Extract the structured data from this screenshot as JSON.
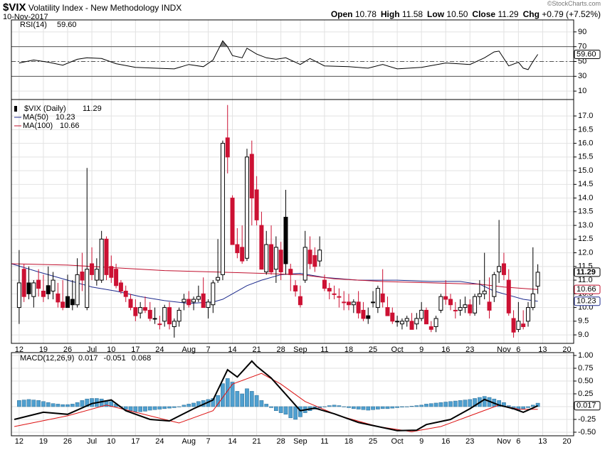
{
  "header": {
    "symbol": "$VIX",
    "name": "Volatility Index - New Methodology INDX",
    "date": "10-Nov-2017",
    "credit": "©StockCharts.com",
    "quote": [
      {
        "label": "Open",
        "value": "10.78"
      },
      {
        "label": "High",
        "value": "11.58"
      },
      {
        "label": "Low",
        "value": "10.50"
      },
      {
        "label": "Close",
        "value": "11.29"
      },
      {
        "label": "Chg",
        "value": "+0.79 (+7.52%)"
      }
    ]
  },
  "chart_data": [
    {
      "type": "rsi",
      "title": "RSI(14)",
      "value_label": "59.60",
      "color": "#000000",
      "shade_color": "#777777",
      "x": [
        0,
        3,
        6,
        9,
        12,
        14,
        17,
        20,
        24,
        28,
        32,
        35,
        38,
        40,
        42,
        43,
        44,
        46,
        47,
        49,
        51,
        53,
        55,
        58,
        60,
        63,
        68,
        72,
        75,
        78,
        83,
        88,
        93,
        96,
        98,
        99,
        101,
        103,
        104,
        105,
        106,
        107
      ],
      "values": [
        48,
        52,
        49,
        45,
        53,
        55,
        54,
        47,
        42,
        41,
        40,
        46,
        43,
        52,
        78,
        70,
        58,
        55,
        68,
        60,
        55,
        53,
        55,
        46,
        54,
        44,
        43,
        41,
        46,
        40,
        42,
        48,
        46,
        55,
        63,
        64,
        44,
        49,
        41,
        39,
        50,
        59.6
      ],
      "ylim": [
        -1.4,
        106.2
      ],
      "yticks": [
        90,
        70,
        50,
        30,
        10
      ],
      "bands": [
        30,
        70
      ],
      "midline": 50
    },
    {
      "type": "candlestick",
      "title": "$VIX (Daily)",
      "value_label": "11.29",
      "up_color": "#000000",
      "down_color": "#cc1133",
      "open": [
        10.0,
        11.4,
        10.9,
        10.4,
        11.0,
        10.6,
        10.8,
        10.6,
        10.5,
        10.2,
        10.4,
        10.3,
        10.1,
        11.3,
        10.0,
        11.6,
        11.0,
        11.0,
        12.5,
        11.5,
        11.4,
        10.9,
        10.6,
        10.3,
        10.0,
        9.8,
        10.0,
        9.9,
        9.6,
        9.4,
        9.5,
        10.0,
        9.3,
        9.5,
        10.2,
        10.3,
        10.2,
        10.3,
        10.5,
        10.0,
        10.1,
        11.0,
        11.2,
        16.2,
        14.0,
        12.3,
        12.2,
        11.8,
        15.6,
        14.3,
        13.0,
        11.3,
        12.3,
        11.4,
        12.1,
        13.3,
        11.4,
        10.8,
        10.4,
        11.0,
        12.1,
        11.9,
        11.7,
        11.0,
        10.7,
        10.5,
        10.4,
        10.2,
        10.2,
        10.1,
        10.2,
        9.9,
        9.7,
        10.2,
        10.0,
        10.5,
        10.0,
        9.8,
        9.5,
        9.4,
        9.5,
        9.5,
        9.4,
        9.6,
        9.9,
        9.3,
        9.3,
        9.9,
        10.4,
        10.3,
        9.9,
        9.9,
        10.0,
        10.1,
        9.8,
        10.4,
        10.5,
        10.2,
        10.4,
        11.3,
        11.6,
        11.0,
        9.6,
        9.2,
        9.4,
        9.5,
        10.0,
        10.78
      ],
      "high": [
        12.1,
        11.6,
        11.5,
        11.0,
        11.4,
        11.2,
        11.5,
        11.3,
        10.9,
        11.0,
        11.2,
        11.0,
        11.8,
        12.0,
        15.1,
        12.2,
        11.8,
        12.8,
        12.6,
        11.9,
        11.6,
        11.0,
        10.8,
        10.5,
        10.3,
        10.2,
        10.4,
        10.2,
        10.0,
        9.7,
        10.1,
        10.2,
        9.6,
        10.0,
        10.5,
        10.6,
        10.4,
        10.8,
        11.1,
        10.3,
        11.0,
        12.5,
        16.1,
        17.4,
        14.1,
        12.9,
        13.0,
        15.8,
        16.1,
        14.8,
        13.5,
        12.8,
        13.0,
        12.6,
        12.4,
        14.3,
        11.6,
        11.0,
        10.8,
        12.8,
        12.6,
        12.2,
        12.6,
        11.2,
        10.9,
        10.8,
        10.7,
        10.6,
        10.5,
        10.3,
        10.6,
        10.2,
        10.0,
        10.6,
        10.8,
        11.4,
        10.4,
        10.0,
        9.7,
        9.6,
        9.7,
        9.8,
        9.8,
        10.2,
        10.0,
        9.5,
        9.7,
        10.5,
        11.0,
        10.5,
        10.2,
        10.3,
        10.4,
        10.3,
        10.5,
        11.0,
        12.0,
        11.1,
        11.3,
        13.2,
        12.0,
        11.4,
        9.9,
        10.2,
        9.9,
        10.2,
        12.2,
        11.58
      ],
      "low": [
        9.4,
        10.2,
        10.3,
        10.0,
        10.4,
        10.2,
        10.3,
        10.3,
        10.0,
        9.9,
        10.0,
        9.9,
        10.0,
        10.6,
        9.9,
        11.0,
        10.8,
        10.9,
        11.0,
        10.9,
        10.7,
        10.5,
        10.2,
        9.9,
        9.5,
        9.6,
        9.8,
        9.5,
        9.4,
        9.2,
        9.3,
        9.2,
        8.9,
        9.3,
        9.9,
        10.0,
        9.9,
        10.2,
        10.0,
        9.6,
        9.8,
        10.9,
        11.0,
        14.9,
        12.3,
        11.8,
        11.6,
        11.7,
        13.0,
        13.0,
        11.4,
        11.2,
        11.2,
        10.9,
        11.0,
        11.2,
        10.6,
        10.4,
        10.0,
        10.9,
        11.4,
        11.3,
        11.5,
        10.6,
        10.3,
        10.3,
        10.0,
        9.9,
        9.9,
        9.8,
        9.6,
        9.5,
        9.4,
        10.0,
        9.8,
        10.0,
        9.7,
        9.4,
        9.3,
        9.2,
        9.3,
        9.2,
        9.2,
        9.5,
        9.4,
        9.1,
        9.1,
        9.8,
        10.1,
        9.9,
        9.6,
        9.7,
        9.8,
        9.7,
        9.7,
        10.1,
        10.3,
        9.6,
        10.2,
        10.9,
        11.0,
        9.7,
        8.9,
        9.1,
        9.2,
        9.3,
        9.9,
        10.5
      ],
      "close": [
        10.9,
        10.4,
        10.5,
        10.9,
        10.7,
        10.4,
        10.5,
        11.0,
        10.2,
        10.0,
        10.0,
        10.1,
        11.2,
        11.0,
        11.4,
        11.2,
        11.4,
        12.5,
        11.2,
        11.1,
        10.8,
        10.6,
        10.4,
        10.0,
        9.7,
        10.0,
        9.9,
        9.6,
        9.6,
        9.4,
        10.0,
        9.4,
        9.5,
        9.9,
        10.3,
        10.1,
        10.3,
        10.4,
        10.0,
        10.2,
        10.9,
        11.1,
        16.0,
        15.5,
        12.3,
        12.0,
        11.7,
        15.5,
        14.0,
        13.2,
        11.4,
        12.3,
        11.3,
        12.2,
        11.3,
        11.6,
        11.2,
        10.6,
        10.1,
        12.2,
        11.6,
        11.5,
        12.1,
        10.7,
        10.6,
        10.5,
        10.4,
        10.2,
        10.1,
        10.2,
        9.8,
        9.6,
        9.6,
        10.2,
        10.7,
        10.2,
        9.7,
        9.5,
        9.5,
        9.5,
        9.6,
        9.2,
        9.6,
        9.9,
        9.4,
        9.2,
        9.6,
        10.4,
        10.3,
        10.1,
        9.9,
        10.0,
        10.1,
        9.8,
        10.4,
        10.5,
        10.6,
        9.9,
        11.2,
        11.5,
        11.2,
        9.8,
        9.1,
        9.5,
        9.3,
        10.0,
        10.5,
        11.29
      ],
      "overlays": [
        {
          "name": "MA(50)",
          "value_label": "10.23",
          "color": "#1c2a8c",
          "x": [
            -1.6,
            4,
            10,
            15,
            20,
            25,
            30,
            35,
            40,
            42,
            44,
            47,
            50,
            54,
            58,
            63,
            70,
            78,
            85,
            91,
            95,
            98,
            101,
            104,
            107
          ],
          "values": [
            11.6,
            11.3,
            11.0,
            10.75,
            10.6,
            10.4,
            10.25,
            10.15,
            10.2,
            10.3,
            10.5,
            10.8,
            11.0,
            11.2,
            11.25,
            11.1,
            11.0,
            11.0,
            10.95,
            10.95,
            10.85,
            10.6,
            10.45,
            10.3,
            10.23
          ]
        },
        {
          "name": "MA(100)",
          "value_label": "10.66",
          "color": "#c0102e",
          "x": [
            -1.6,
            10,
            20,
            30,
            40,
            50,
            58,
            65,
            75,
            85,
            95,
            100,
            107
          ],
          "values": [
            11.6,
            11.55,
            11.45,
            11.35,
            11.3,
            11.25,
            11.2,
            11.05,
            10.95,
            10.9,
            10.85,
            10.75,
            10.66
          ]
        }
      ],
      "ylim": [
        8.69,
        17.6
      ],
      "yticks": [
        {
          "value": 9.0,
          "label": "9.0"
        },
        {
          "value": 9.5,
          "label": "9.5"
        },
        {
          "value": 10.0,
          "label": "10.0"
        },
        {
          "value": 10.5,
          "label": "10.5"
        },
        {
          "value": 11.0,
          "label": "11.0"
        },
        {
          "value": 11.5,
          "label": "11.5"
        },
        {
          "value": 12.0,
          "label": "12.0"
        },
        {
          "value": 12.5,
          "label": "12.5"
        },
        {
          "value": 13.0,
          "label": "13.0"
        },
        {
          "value": 13.5,
          "label": "13.5"
        },
        {
          "value": 14.0,
          "label": "14.0"
        },
        {
          "value": 14.5,
          "label": "14.5"
        },
        {
          "value": 15.0,
          "label": "15.0"
        },
        {
          "value": 15.5,
          "label": "15.5"
        },
        {
          "value": 16.0,
          "label": "16.0"
        },
        {
          "value": 16.5,
          "label": "16.5"
        },
        {
          "value": 17.0,
          "label": "17.0"
        }
      ],
      "xlim": [
        -1.6,
        114.4
      ],
      "xticks": [
        {
          "value": 0,
          "label": "12"
        },
        {
          "value": 5,
          "label": "19"
        },
        {
          "value": 10,
          "label": "26"
        },
        {
          "value": 15,
          "label": "Jul"
        },
        {
          "value": 19,
          "label": "10"
        },
        {
          "value": 24,
          "label": "17"
        },
        {
          "value": 29,
          "label": "24"
        },
        {
          "value": 35,
          "label": "Aug"
        },
        {
          "value": 39,
          "label": "7"
        },
        {
          "value": 44,
          "label": "14"
        },
        {
          "value": 49,
          "label": "21"
        },
        {
          "value": 54,
          "label": "28"
        },
        {
          "value": 58,
          "label": "Sep"
        },
        {
          "value": 63,
          "label": "11"
        },
        {
          "value": 68,
          "label": "18"
        },
        {
          "value": 73,
          "label": "25"
        },
        {
          "value": 78,
          "label": "Oct"
        },
        {
          "value": 83,
          "label": "9"
        },
        {
          "value": 88,
          "label": "16"
        },
        {
          "value": 93,
          "label": "23"
        },
        {
          "value": 100,
          "label": "Nov"
        },
        {
          "value": 103,
          "label": "6"
        },
        {
          "value": 108,
          "label": "13"
        },
        {
          "value": 113,
          "label": "20"
        }
      ]
    },
    {
      "type": "macd",
      "title": "MACD(12,26,9)",
      "value_labels": [
        "0.017",
        "-0.051",
        "0.068"
      ],
      "macd": {
        "color": "#000000",
        "x": [
          -1,
          5,
          10,
          15,
          19,
          22,
          27,
          31,
          36,
          40,
          43,
          45,
          48,
          49,
          52,
          55,
          58,
          61,
          65,
          70,
          74,
          78,
          82,
          84,
          89,
          93,
          96,
          99,
          102,
          104,
          107
        ],
        "values": [
          -0.25,
          -0.11,
          -0.15,
          0.06,
          0.13,
          -0.08,
          -0.25,
          -0.28,
          -0.04,
          0.13,
          0.72,
          0.58,
          0.89,
          0.79,
          0.56,
          0.24,
          -0.08,
          -0.03,
          -0.14,
          -0.31,
          -0.39,
          -0.47,
          -0.46,
          -0.35,
          -0.25,
          -0.04,
          0.14,
          0.03,
          -0.04,
          -0.11,
          0.017
        ]
      },
      "signal": {
        "color": "#dd1111",
        "x": [
          -1,
          10,
          18,
          30,
          33,
          40,
          44,
          50,
          54,
          59,
          66,
          74,
          81,
          87,
          93,
          99,
          103,
          107
        ],
        "values": [
          -0.39,
          -0.18,
          0.03,
          -0.25,
          -0.32,
          -0.08,
          0.44,
          0.65,
          0.44,
          0.1,
          -0.18,
          -0.39,
          -0.49,
          -0.39,
          -0.18,
          0.03,
          -0.05,
          -0.051
        ]
      },
      "histogram": {
        "color": "#4f9fcf",
        "values": [
          0.12,
          0.13,
          0.14,
          0.13,
          0.12,
          0.1,
          0.08,
          0.06,
          0.05,
          0.04,
          0.04,
          0.05,
          0.08,
          0.12,
          0.15,
          0.16,
          0.16,
          0.15,
          0.12,
          0.1,
          0.05,
          0.0,
          -0.05,
          -0.08,
          -0.1,
          -0.1,
          -0.09,
          -0.07,
          -0.06,
          -0.05,
          -0.04,
          -0.03,
          -0.02,
          0.0,
          0.03,
          0.05,
          0.07,
          0.1,
          0.12,
          0.14,
          0.16,
          0.22,
          0.45,
          0.55,
          0.48,
          0.3,
          0.25,
          0.35,
          0.3,
          0.22,
          0.12,
          0.05,
          -0.02,
          -0.08,
          -0.12,
          -0.15,
          -0.22,
          -0.25,
          -0.2,
          -0.12,
          -0.08,
          -0.05,
          -0.03,
          0.0,
          0.02,
          0.03,
          0.02,
          0.0,
          -0.02,
          -0.04,
          -0.05,
          -0.06,
          -0.07,
          -0.06,
          -0.05,
          -0.04,
          -0.04,
          -0.03,
          -0.02,
          -0.01,
          0.0,
          0.01,
          0.02,
          0.03,
          0.05,
          0.06,
          0.07,
          0.08,
          0.09,
          0.1,
          0.11,
          0.12,
          0.13,
          0.14,
          0.16,
          0.18,
          0.2,
          0.18,
          0.15,
          0.12,
          0.08,
          0.02,
          -0.05,
          -0.07,
          -0.05,
          -0.02,
          0.03,
          0.068
        ]
      },
      "ylim": [
        -0.57,
        1.056
      ],
      "yticks": [
        {
          "value": 1.0,
          "label": "1.00"
        },
        {
          "value": 0.75,
          "label": "0.75"
        },
        {
          "value": 0.5,
          "label": "0.50"
        },
        {
          "value": 0.25,
          "label": "0.25"
        },
        0,
        {
          "value": -0.25,
          "label": "-0.25"
        },
        {
          "value": -0.5,
          "label": "-0.50"
        }
      ]
    }
  ]
}
